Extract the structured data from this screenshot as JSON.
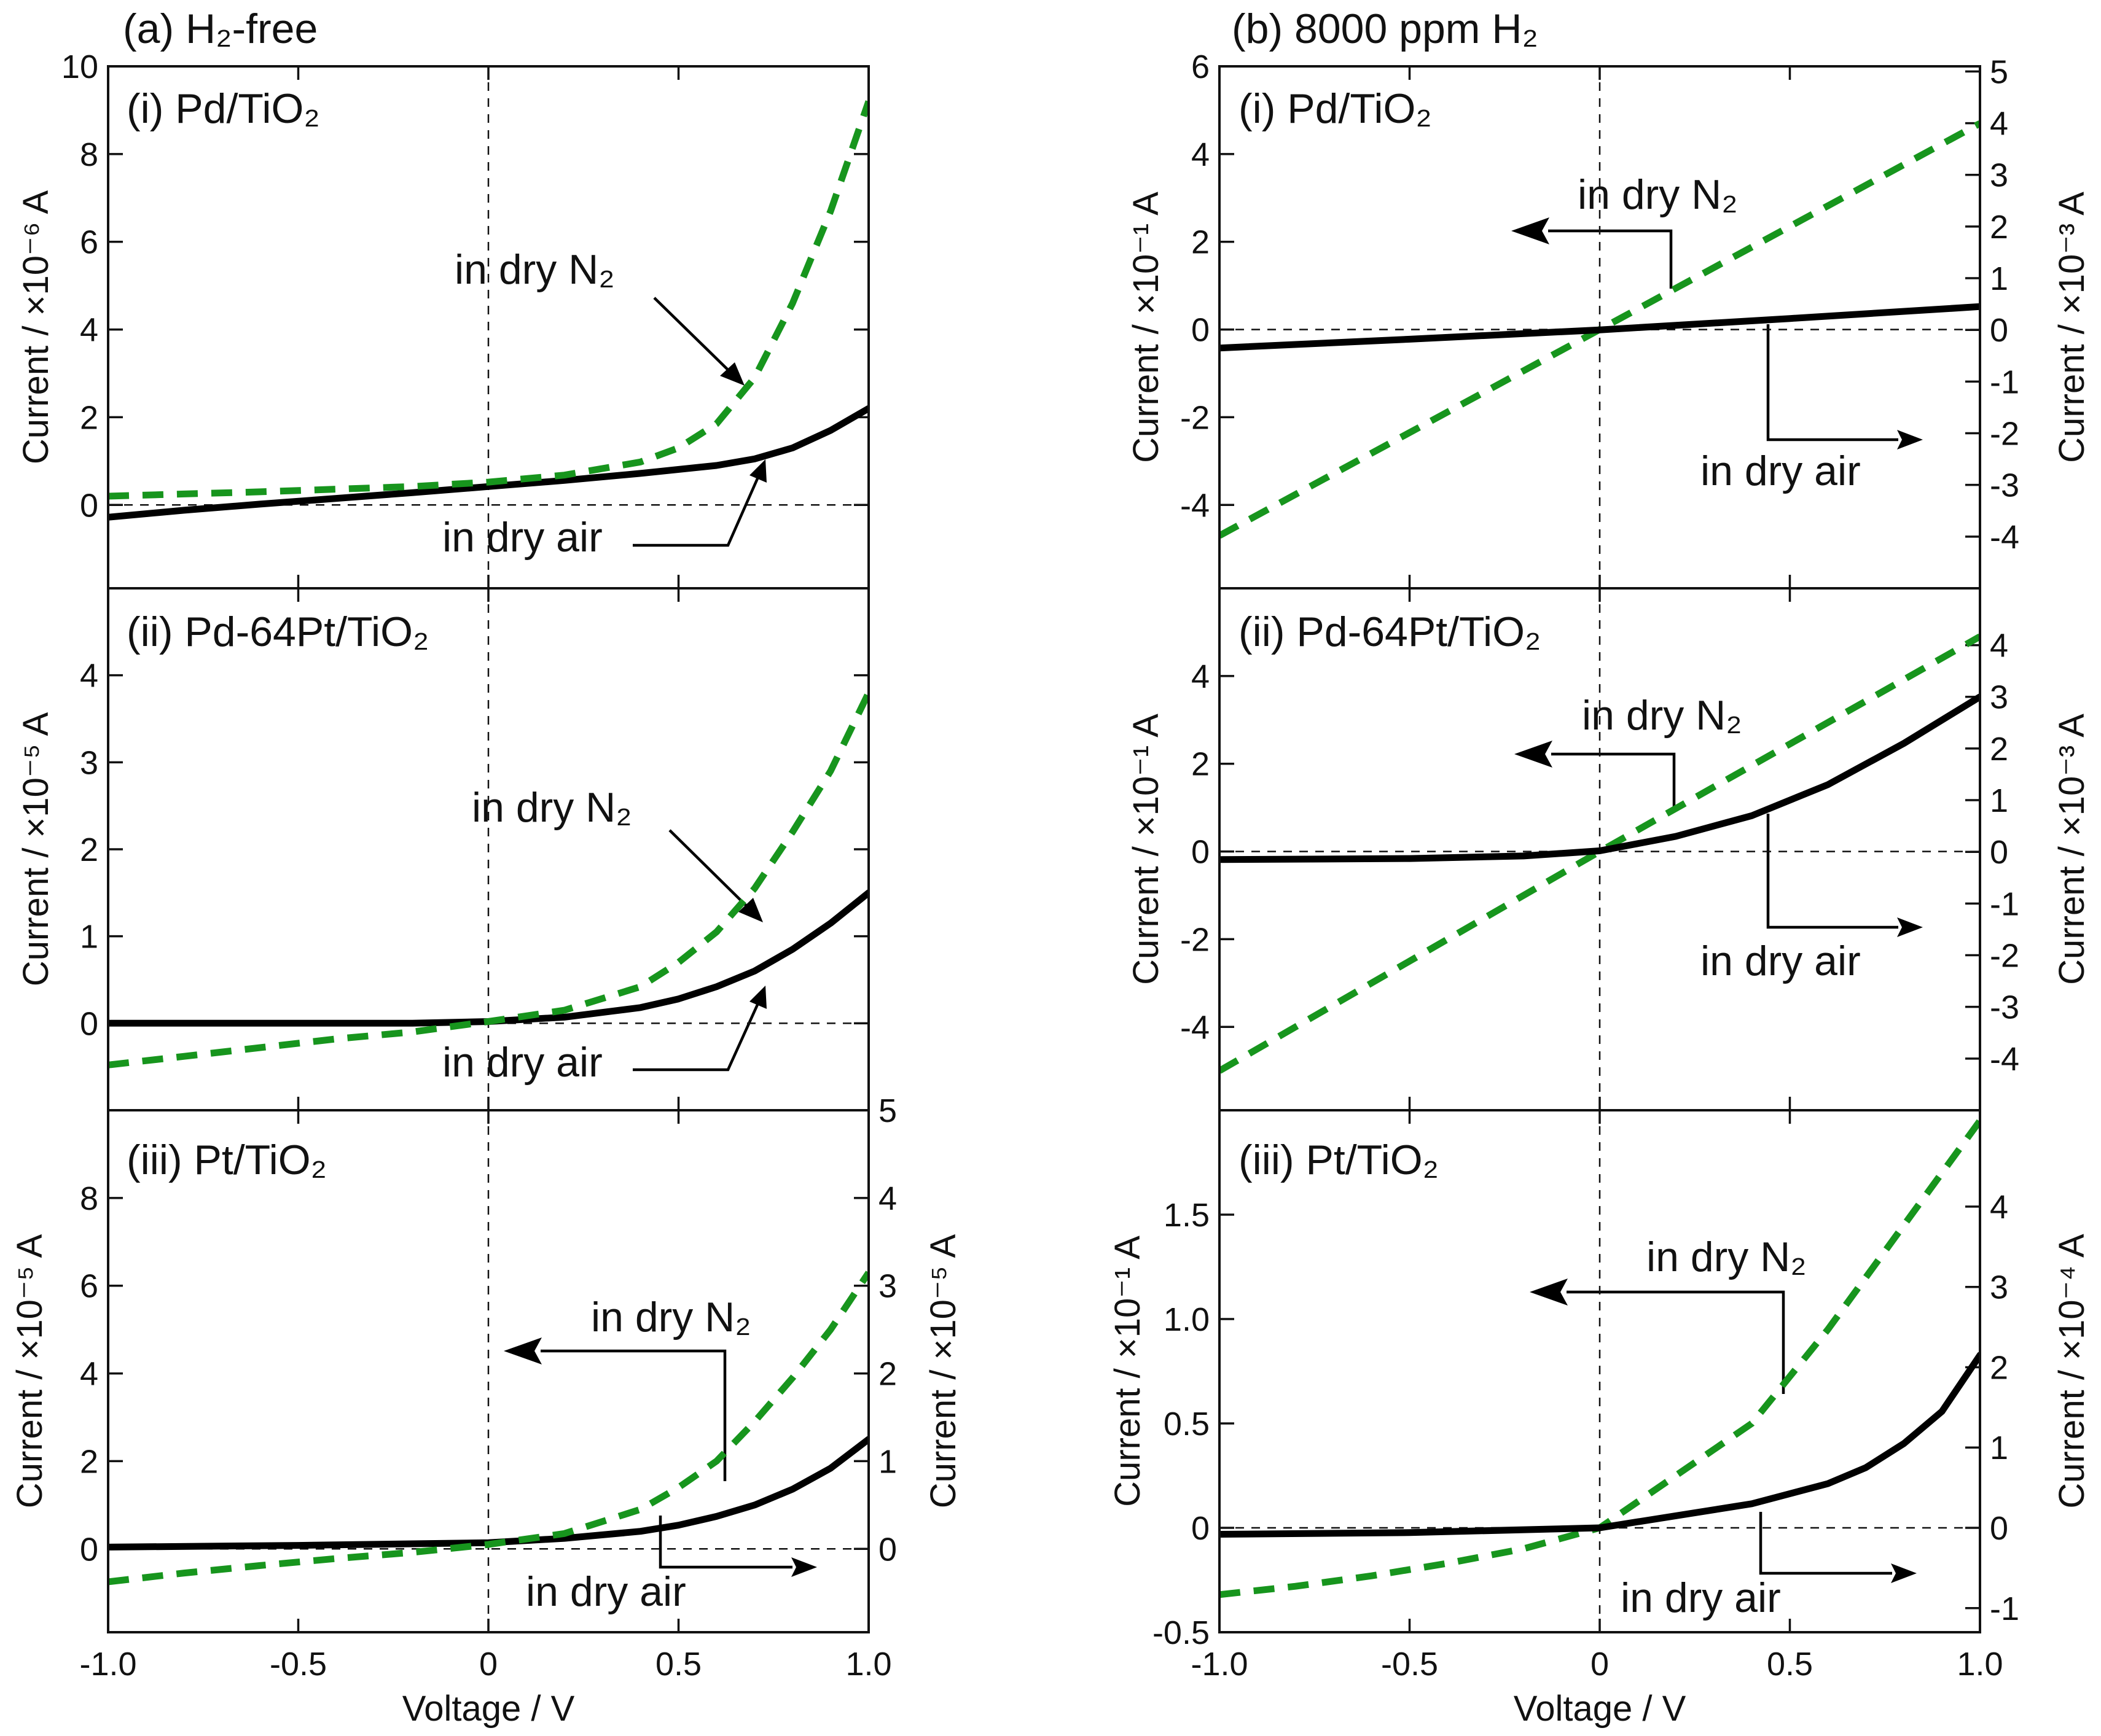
{
  "figure": {
    "title_a": "(a) H₂-free",
    "title_b": "(b) 8000 ppm H₂",
    "xlabel": "Voltage / V"
  },
  "chart_data": [
    {
      "id": "a1",
      "type": "line",
      "label": "(i) Pd/TiO₂",
      "xlim": [
        -1,
        1
      ],
      "xticks": [
        -1,
        -0.5,
        0,
        0.5,
        1
      ],
      "xticklabels": [
        "-1.0",
        "-0.5",
        "0",
        "0.5",
        "1.0"
      ],
      "ylabel": "Current / ×10⁻⁶ A",
      "ylim": [
        -1.9,
        10
      ],
      "yticks": [
        0,
        2,
        4,
        6,
        8,
        10
      ],
      "yticklabels": [
        "0",
        "2",
        "4",
        "6",
        "8",
        "10"
      ],
      "series": [
        {
          "name": "in dry air",
          "style": "solid",
          "axis": "left",
          "x": [
            -1,
            -0.8,
            -0.6,
            -0.4,
            -0.2,
            0,
            0.2,
            0.4,
            0.6,
            0.7,
            0.8,
            0.9,
            1.0
          ],
          "y": [
            -0.28,
            -0.12,
            0.02,
            0.15,
            0.28,
            0.42,
            0.56,
            0.72,
            0.9,
            1.05,
            1.3,
            1.7,
            2.2
          ]
        },
        {
          "name": "in dry N₂",
          "style": "dashed",
          "axis": "left",
          "x": [
            -1,
            -0.8,
            -0.6,
            -0.4,
            -0.2,
            0,
            0.2,
            0.4,
            0.5,
            0.6,
            0.7,
            0.8,
            0.9,
            1.0
          ],
          "y": [
            0.2,
            0.25,
            0.3,
            0.36,
            0.42,
            0.52,
            0.68,
            0.98,
            1.3,
            1.85,
            2.9,
            4.6,
            6.7,
            9.2
          ]
        }
      ],
      "annotations": [
        {
          "text": "in dry N₂",
          "points_to": "in dry N₂ curve"
        },
        {
          "text": "in dry air",
          "points_to": "in dry air curve"
        }
      ]
    },
    {
      "id": "a2",
      "type": "line",
      "label": "(ii) Pd-64Pt/TiO₂",
      "xlim": [
        -1,
        1
      ],
      "xticks": [
        -1,
        -0.5,
        0,
        0.5,
        1
      ],
      "xticklabels": [
        "-1.0",
        "-0.5",
        "0",
        "0.5",
        "1.0"
      ],
      "ylabel": "Current / ×10⁻⁵ A",
      "ylim": [
        -1,
        5
      ],
      "yticks": [
        0,
        1,
        2,
        3,
        4
      ],
      "yticklabels": [
        "0",
        "1",
        "2",
        "3",
        "4"
      ],
      "series": [
        {
          "name": "in dry air",
          "style": "solid",
          "axis": "left",
          "x": [
            -1,
            -0.5,
            -0.2,
            0,
            0.2,
            0.4,
            0.5,
            0.6,
            0.7,
            0.8,
            0.9,
            1.0
          ],
          "y": [
            0,
            0,
            0.0,
            0.02,
            0.07,
            0.18,
            0.28,
            0.42,
            0.6,
            0.85,
            1.15,
            1.5
          ]
        },
        {
          "name": "in dry N₂",
          "style": "dashed",
          "axis": "left",
          "x": [
            -1,
            -0.8,
            -0.6,
            -0.4,
            -0.2,
            0,
            0.2,
            0.4,
            0.5,
            0.6,
            0.7,
            0.8,
            0.9,
            1.0
          ],
          "y": [
            -0.48,
            -0.38,
            -0.28,
            -0.18,
            -0.1,
            0.02,
            0.15,
            0.42,
            0.7,
            1.05,
            1.55,
            2.2,
            2.9,
            3.8
          ]
        }
      ],
      "annotations": [
        {
          "text": "in dry N₂",
          "points_to": "in dry N₂ curve"
        },
        {
          "text": "in dry air",
          "points_to": "in dry air curve"
        }
      ]
    },
    {
      "id": "a3",
      "type": "line",
      "label": "(iii) Pt/TiO₂",
      "xlim": [
        -1,
        1
      ],
      "xticks": [
        -1,
        -0.5,
        0,
        0.5,
        1
      ],
      "xticklabels": [
        "-1.0",
        "-0.5",
        "0",
        "0.5",
        "1.0"
      ],
      "ylabel": "Current / ×10⁻⁵ A",
      "ylim": [
        -1.9,
        10
      ],
      "yticks": [
        0,
        2,
        4,
        6,
        8
      ],
      "yticklabels": [
        "0",
        "2",
        "4",
        "6",
        "8"
      ],
      "ylabel_right": "Current / ×10⁻⁵ A",
      "ylim_right": [
        -0.95,
        5
      ],
      "yticks_right": [
        0,
        1,
        2,
        3,
        4,
        5
      ],
      "yticklabels_right": [
        "0",
        "1",
        "2",
        "3",
        "4",
        "5"
      ],
      "series": [
        {
          "name": "in dry air",
          "style": "solid",
          "axis": "right",
          "x": [
            -1,
            -0.5,
            0,
            0.2,
            0.4,
            0.5,
            0.6,
            0.7,
            0.8,
            0.9,
            1.0
          ],
          "y": [
            0.02,
            0.04,
            0.07,
            0.12,
            0.2,
            0.27,
            0.37,
            0.5,
            0.68,
            0.92,
            1.25
          ]
        },
        {
          "name": "in dry N₂",
          "style": "dashed",
          "axis": "left",
          "x": [
            -1,
            -0.8,
            -0.6,
            -0.4,
            -0.2,
            0,
            0.2,
            0.4,
            0.5,
            0.6,
            0.7,
            0.8,
            0.9,
            1.0
          ],
          "y": [
            -0.75,
            -0.55,
            -0.38,
            -0.22,
            -0.08,
            0.1,
            0.35,
            0.9,
            1.4,
            2.0,
            2.9,
            3.9,
            5.0,
            6.3
          ]
        }
      ],
      "annotations": [
        {
          "text": "in dry N₂",
          "points_to": "left axis"
        },
        {
          "text": "in dry air",
          "points_to": "right axis"
        }
      ]
    },
    {
      "id": "b1",
      "type": "line",
      "label": "(i) Pd/TiO₂",
      "xlim": [
        -1,
        1
      ],
      "xticks": [
        -1,
        -0.5,
        0,
        0.5,
        1
      ],
      "xticklabels": [
        "-1.0",
        "-0.5",
        "0",
        "0.5",
        "1.0"
      ],
      "ylabel": "Current / ×10⁻¹ A",
      "ylim": [
        -5.9,
        6
      ],
      "yticks": [
        -4,
        -2,
        0,
        2,
        4,
        6
      ],
      "yticklabels": [
        "-4",
        "-2",
        "0",
        "2",
        "4",
        "6"
      ],
      "ylabel_right": "Current / ×10⁻³ A",
      "ylim_right": [
        -5,
        5.1
      ],
      "yticks_right": [
        -4,
        -3,
        -2,
        -1,
        0,
        1,
        2,
        3,
        4,
        5
      ],
      "yticklabels_right": [
        "-4",
        "-3",
        "-2",
        "-1",
        "0",
        "1",
        "2",
        "3",
        "4",
        "5"
      ],
      "series": [
        {
          "name": "in dry N₂",
          "style": "dashed",
          "axis": "left",
          "x": [
            -1,
            0,
            1
          ],
          "y": [
            -4.7,
            0,
            4.7
          ]
        },
        {
          "name": "in dry air",
          "style": "solid",
          "axis": "right",
          "x": [
            -1,
            -0.5,
            0,
            0.5,
            1
          ],
          "y": [
            -0.35,
            -0.18,
            0,
            0.22,
            0.45
          ]
        }
      ],
      "annotations": [
        {
          "text": "in dry N₂",
          "points_to": "left axis"
        },
        {
          "text": "in dry air",
          "points_to": "right axis"
        }
      ]
    },
    {
      "id": "b2",
      "type": "line",
      "label": "(ii) Pd-64Pt/TiO₂",
      "xlim": [
        -1,
        1
      ],
      "xticks": [
        -1,
        -0.5,
        0,
        0.5,
        1
      ],
      "xticklabels": [
        "-1.0",
        "-0.5",
        "0",
        "0.5",
        "1.0"
      ],
      "ylabel": "Current / ×10⁻¹ A",
      "ylim": [
        -5.9,
        6
      ],
      "yticks": [
        -4,
        -2,
        0,
        2,
        4
      ],
      "yticklabels": [
        "-4",
        "-2",
        "0",
        "2",
        "4"
      ],
      "ylabel_right": "Current / ×10⁻³ A",
      "ylim_right": [
        -5,
        5.1
      ],
      "yticks_right": [
        -4,
        -3,
        -2,
        -1,
        0,
        1,
        2,
        3,
        4
      ],
      "yticklabels_right": [
        "-4",
        "-3",
        "-2",
        "-1",
        "0",
        "1",
        "2",
        "3",
        "4"
      ],
      "series": [
        {
          "name": "in dry N₂",
          "style": "dashed",
          "axis": "left",
          "x": [
            -1,
            0,
            1
          ],
          "y": [
            -5.0,
            0,
            4.9
          ]
        },
        {
          "name": "in dry air",
          "style": "solid",
          "axis": "right",
          "x": [
            -1,
            -0.5,
            -0.2,
            0,
            0.2,
            0.4,
            0.6,
            0.8,
            1.0
          ],
          "y": [
            -0.15,
            -0.13,
            -0.08,
            0.02,
            0.3,
            0.7,
            1.3,
            2.1,
            3.0
          ]
        }
      ],
      "annotations": [
        {
          "text": "in dry N₂",
          "points_to": "left axis"
        },
        {
          "text": "in dry air",
          "points_to": "right axis"
        }
      ]
    },
    {
      "id": "b3",
      "type": "line",
      "label": "(iii) Pt/TiO₂",
      "xlim": [
        -1,
        1
      ],
      "xticks": [
        -1,
        -0.5,
        0,
        0.5,
        1
      ],
      "xticklabels": [
        "-1.0",
        "-0.5",
        "0",
        "0.5",
        "1.0"
      ],
      "ylabel": "Current / ×10⁻¹ A",
      "ylim": [
        -0.5,
        2.0
      ],
      "yticks": [
        -0.5,
        0,
        0.5,
        1.0,
        1.5
      ],
      "yticklabels": [
        "-0.5",
        "0",
        "0.5",
        "1.0",
        "1.5"
      ],
      "ylabel_right": "Current / ×10⁻⁴ A",
      "ylim_right": [
        -1.3,
        5.2
      ],
      "yticks_right": [
        -1,
        0,
        1,
        2,
        3,
        4
      ],
      "yticklabels_right": [
        "-1",
        "0",
        "1",
        "2",
        "3",
        "4"
      ],
      "series": [
        {
          "name": "in dry N₂",
          "style": "dashed",
          "axis": "left",
          "x": [
            -1,
            -0.8,
            -0.6,
            -0.4,
            -0.2,
            0,
            0.2,
            0.4,
            0.6,
            0.8,
            1.0
          ],
          "y": [
            -0.32,
            -0.28,
            -0.23,
            -0.17,
            -0.1,
            0.0,
            0.25,
            0.5,
            0.95,
            1.45,
            1.95
          ]
        },
        {
          "name": "in dry air",
          "style": "solid",
          "axis": "right",
          "x": [
            -1,
            -0.5,
            0,
            0.2,
            0.4,
            0.6,
            0.7,
            0.8,
            0.9,
            1.0
          ],
          "y": [
            -0.08,
            -0.06,
            0.0,
            0.15,
            0.3,
            0.55,
            0.75,
            1.05,
            1.45,
            2.15
          ]
        }
      ],
      "annotations": [
        {
          "text": "in dry N₂",
          "points_to": "left axis"
        },
        {
          "text": "in dry air",
          "points_to": "right axis"
        }
      ]
    }
  ]
}
